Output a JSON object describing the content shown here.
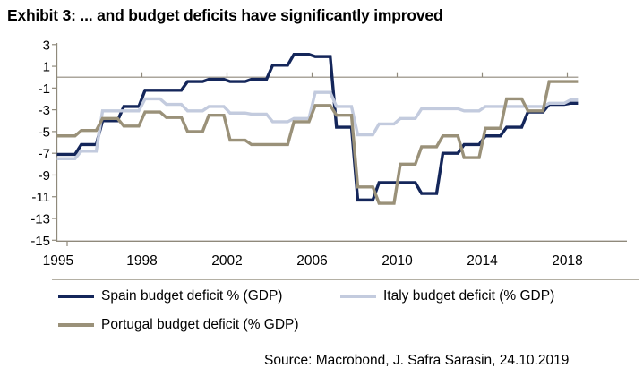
{
  "title": "Exhibit 3: ... and budget deficits have significantly improved",
  "source": "Source: Macrobond, J. Safra Sarasin, 24.10.2019",
  "colors": {
    "spain": "#14265a",
    "italy": "#c3cbde",
    "portugal": "#9a9179",
    "axis": "#8f897b",
    "separator": "#b4b0a4",
    "label_text": "#000000"
  },
  "legend": {
    "spain_label": "Spain budget deficit % (GDP)",
    "italy_label": "Italy budget deficit (% GDP)",
    "portugal_label": "Portugal budget deficit (% GDP)"
  },
  "chart_data": {
    "type": "line",
    "step": true,
    "note": "Annual budget balance in % of GDP; each year's value is drawn as a step spanning [year-1, year] (end-of-period plotting). Zero line drawn across plot.",
    "x_domain": [
      1994,
      2018.5
    ],
    "ylim": [
      -15,
      3
    ],
    "y_ticks": [
      3,
      1,
      -1,
      -3,
      -5,
      -7,
      -9,
      -11,
      -13,
      -15
    ],
    "x_tick_labels": [
      "1995",
      "1998",
      "2002",
      "2006",
      "2010",
      "2014",
      "2018"
    ],
    "x_tick_positions": [
      1994.06,
      1998,
      2002,
      2006,
      2010,
      2014,
      2018
    ],
    "zero_line_tick_years": [
      1998,
      2002,
      2006,
      2010,
      2014,
      2018
    ],
    "grid": "zero-line-only",
    "legend_position": "bottom",
    "years": [
      1995,
      1996,
      1997,
      1998,
      1999,
      2000,
      2001,
      2002,
      2003,
      2004,
      2005,
      2006,
      2007,
      2008,
      2009,
      2010,
      2011,
      2012,
      2013,
      2014,
      2015,
      2016,
      2017,
      2018,
      2019
    ],
    "series": [
      {
        "key": "spain",
        "name": "Spain budget deficit % (GDP)",
        "values": [
          -7.1,
          -6.2,
          -4.0,
          -2.7,
          -1.2,
          -1.2,
          -0.4,
          -0.2,
          -0.4,
          -0.2,
          1.1,
          2.1,
          1.9,
          -4.6,
          -11.3,
          -9.7,
          -9.7,
          -10.7,
          -7.0,
          -6.2,
          -5.4,
          -4.6,
          -3.2,
          -2.5,
          -2.4
        ]
      },
      {
        "key": "italy",
        "name": "Italy budget deficit (% GDP)",
        "values": [
          -7.5,
          -6.8,
          -3.1,
          -3.1,
          -2.0,
          -2.5,
          -3.1,
          -2.7,
          -3.3,
          -3.4,
          -4.1,
          -3.8,
          -1.4,
          -2.7,
          -5.3,
          -4.3,
          -3.8,
          -2.9,
          -2.9,
          -3.1,
          -2.7,
          -2.7,
          -2.7,
          -2.4,
          -2.1
        ]
      },
      {
        "key": "portugal",
        "name": "Portugal budget deficit (% GDP)",
        "values": [
          -5.4,
          -4.9,
          -3.8,
          -4.5,
          -3.2,
          -3.7,
          -5.0,
          -3.5,
          -5.8,
          -6.2,
          -6.2,
          -4.1,
          -2.6,
          -3.5,
          -10.1,
          -11.6,
          -8.0,
          -6.4,
          -5.4,
          -7.4,
          -4.7,
          -2.0,
          -3.1,
          -0.4,
          -0.4
        ]
      }
    ]
  }
}
